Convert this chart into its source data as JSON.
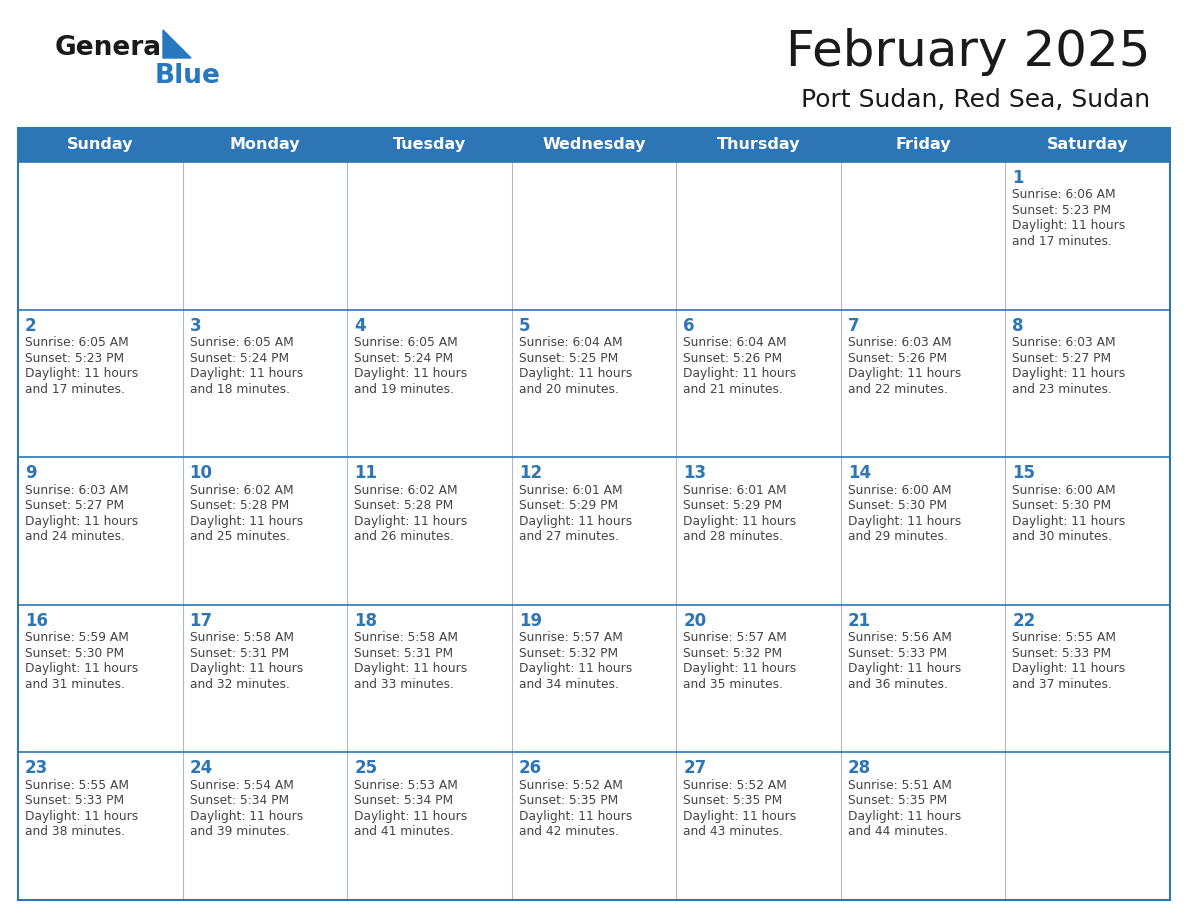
{
  "title": "February 2025",
  "subtitle": "Port Sudan, Red Sea, Sudan",
  "header_bg": "#2E75B6",
  "header_text_color": "#FFFFFF",
  "border_color": "#2E75B6",
  "row_line_color": "#2E75B6",
  "col_line_color": "#B0B8C8",
  "cell_bg": "#FFFFFF",
  "title_color": "#1a1a1a",
  "subtitle_color": "#1a1a1a",
  "number_color": "#2E75B6",
  "text_color": "#444444",
  "logo_general_color": "#1a1a1a",
  "logo_blue_color": "#2878C0",
  "day_names": [
    "Sunday",
    "Monday",
    "Tuesday",
    "Wednesday",
    "Thursday",
    "Friday",
    "Saturday"
  ],
  "calendar_data": [
    [
      null,
      null,
      null,
      null,
      null,
      null,
      {
        "day": 1,
        "sunrise": "6:06 AM",
        "sunset": "5:23 PM",
        "daylight": "11 hours and 17 minutes."
      }
    ],
    [
      {
        "day": 2,
        "sunrise": "6:05 AM",
        "sunset": "5:23 PM",
        "daylight": "11 hours and 17 minutes."
      },
      {
        "day": 3,
        "sunrise": "6:05 AM",
        "sunset": "5:24 PM",
        "daylight": "11 hours and 18 minutes."
      },
      {
        "day": 4,
        "sunrise": "6:05 AM",
        "sunset": "5:24 PM",
        "daylight": "11 hours and 19 minutes."
      },
      {
        "day": 5,
        "sunrise": "6:04 AM",
        "sunset": "5:25 PM",
        "daylight": "11 hours and 20 minutes."
      },
      {
        "day": 6,
        "sunrise": "6:04 AM",
        "sunset": "5:26 PM",
        "daylight": "11 hours and 21 minutes."
      },
      {
        "day": 7,
        "sunrise": "6:03 AM",
        "sunset": "5:26 PM",
        "daylight": "11 hours and 22 minutes."
      },
      {
        "day": 8,
        "sunrise": "6:03 AM",
        "sunset": "5:27 PM",
        "daylight": "11 hours and 23 minutes."
      }
    ],
    [
      {
        "day": 9,
        "sunrise": "6:03 AM",
        "sunset": "5:27 PM",
        "daylight": "11 hours and 24 minutes."
      },
      {
        "day": 10,
        "sunrise": "6:02 AM",
        "sunset": "5:28 PM",
        "daylight": "11 hours and 25 minutes."
      },
      {
        "day": 11,
        "sunrise": "6:02 AM",
        "sunset": "5:28 PM",
        "daylight": "11 hours and 26 minutes."
      },
      {
        "day": 12,
        "sunrise": "6:01 AM",
        "sunset": "5:29 PM",
        "daylight": "11 hours and 27 minutes."
      },
      {
        "day": 13,
        "sunrise": "6:01 AM",
        "sunset": "5:29 PM",
        "daylight": "11 hours and 28 minutes."
      },
      {
        "day": 14,
        "sunrise": "6:00 AM",
        "sunset": "5:30 PM",
        "daylight": "11 hours and 29 minutes."
      },
      {
        "day": 15,
        "sunrise": "6:00 AM",
        "sunset": "5:30 PM",
        "daylight": "11 hours and 30 minutes."
      }
    ],
    [
      {
        "day": 16,
        "sunrise": "5:59 AM",
        "sunset": "5:30 PM",
        "daylight": "11 hours and 31 minutes."
      },
      {
        "day": 17,
        "sunrise": "5:58 AM",
        "sunset": "5:31 PM",
        "daylight": "11 hours and 32 minutes."
      },
      {
        "day": 18,
        "sunrise": "5:58 AM",
        "sunset": "5:31 PM",
        "daylight": "11 hours and 33 minutes."
      },
      {
        "day": 19,
        "sunrise": "5:57 AM",
        "sunset": "5:32 PM",
        "daylight": "11 hours and 34 minutes."
      },
      {
        "day": 20,
        "sunrise": "5:57 AM",
        "sunset": "5:32 PM",
        "daylight": "11 hours and 35 minutes."
      },
      {
        "day": 21,
        "sunrise": "5:56 AM",
        "sunset": "5:33 PM",
        "daylight": "11 hours and 36 minutes."
      },
      {
        "day": 22,
        "sunrise": "5:55 AM",
        "sunset": "5:33 PM",
        "daylight": "11 hours and 37 minutes."
      }
    ],
    [
      {
        "day": 23,
        "sunrise": "5:55 AM",
        "sunset": "5:33 PM",
        "daylight": "11 hours and 38 minutes."
      },
      {
        "day": 24,
        "sunrise": "5:54 AM",
        "sunset": "5:34 PM",
        "daylight": "11 hours and 39 minutes."
      },
      {
        "day": 25,
        "sunrise": "5:53 AM",
        "sunset": "5:34 PM",
        "daylight": "11 hours and 41 minutes."
      },
      {
        "day": 26,
        "sunrise": "5:52 AM",
        "sunset": "5:35 PM",
        "daylight": "11 hours and 42 minutes."
      },
      {
        "day": 27,
        "sunrise": "5:52 AM",
        "sunset": "5:35 PM",
        "daylight": "11 hours and 43 minutes."
      },
      {
        "day": 28,
        "sunrise": "5:51 AM",
        "sunset": "5:35 PM",
        "daylight": "11 hours and 44 minutes."
      },
      null
    ]
  ]
}
